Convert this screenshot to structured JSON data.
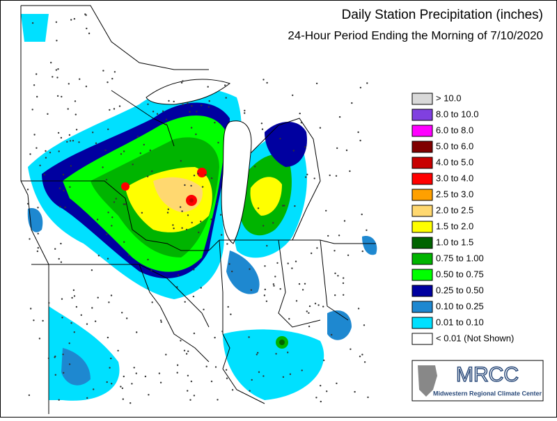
{
  "header": {
    "title": "Daily Station Precipitation (inches)",
    "subtitle": "24-Hour Period Ending the Morning of 7/10/2020"
  },
  "legend": {
    "items": [
      {
        "label": "> 10.0",
        "color": "#d9d9d9"
      },
      {
        "label": "8.0 to 10.0",
        "color": "#8040e0"
      },
      {
        "label": "6.0 to 8.0",
        "color": "#ff00ff"
      },
      {
        "label": "5.0 to 6.0",
        "color": "#800000"
      },
      {
        "label": "4.0 to 5.0",
        "color": "#c80000"
      },
      {
        "label": "3.0 to 4.0",
        "color": "#ff0000"
      },
      {
        "label": "2.5 to 3.0",
        "color": "#ffa000"
      },
      {
        "label": "2.0 to 2.5",
        "color": "#ffd870"
      },
      {
        "label": "1.5 to 2.0",
        "color": "#ffff00"
      },
      {
        "label": "1.0 to 1.5",
        "color": "#006400"
      },
      {
        "label": "0.75 to 1.00",
        "color": "#00b400"
      },
      {
        "label": "0.50 to 0.75",
        "color": "#00ff00"
      },
      {
        "label": "0.25 to 0.50",
        "color": "#0000a0"
      },
      {
        "label": "0.10 to 0.25",
        "color": "#1e88d0"
      },
      {
        "label": "0.01 to 0.10",
        "color": "#00e0ff"
      },
      {
        "label": "< 0.01 (Not Shown)",
        "color": "#ffffff"
      }
    ]
  },
  "logo": {
    "name": "MRCC",
    "subtitle": "Midwestern Regional Climate Center"
  }
}
